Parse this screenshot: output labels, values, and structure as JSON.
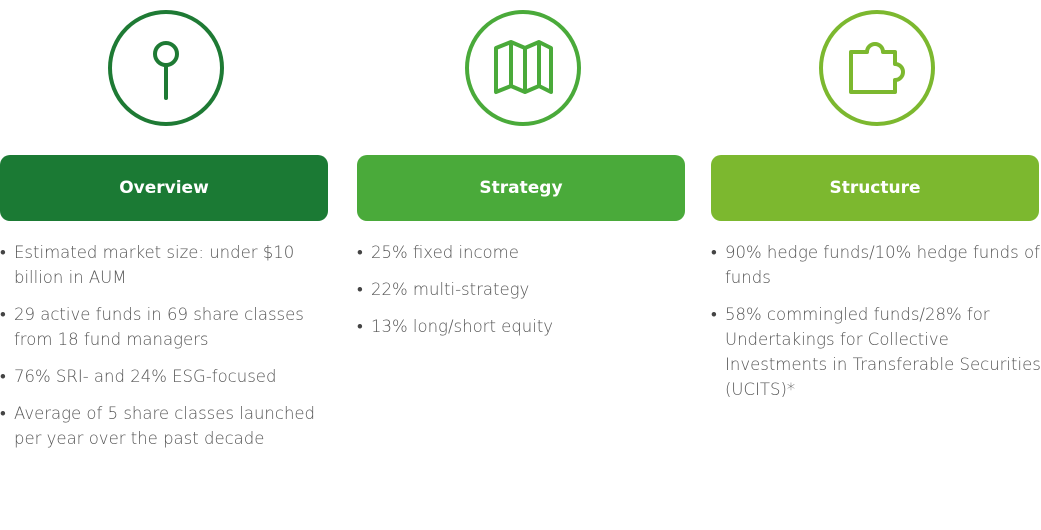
{
  "columns": [
    {
      "title": "Overview",
      "items": [
        "Estimated market size: under $10 billion in AUM",
        "29 active funds in 69 share classes from 18 fund managers",
        "76% SRI- and 24% ESG-focused",
        "Average of 5 share classes launched per year over the past decade"
      ]
    },
    {
      "title": "Strategy",
      "items": [
        "25% fixed income",
        "22% multi-strategy",
        "13% long/short equity"
      ]
    },
    {
      "title": "Structure",
      "items": [
        "90% hedge funds/10% hedge funds of funds",
        "58% commingled funds/28% for Undertakings for Collective Investments in Transferable Securities (UCITS)*"
      ]
    }
  ]
}
